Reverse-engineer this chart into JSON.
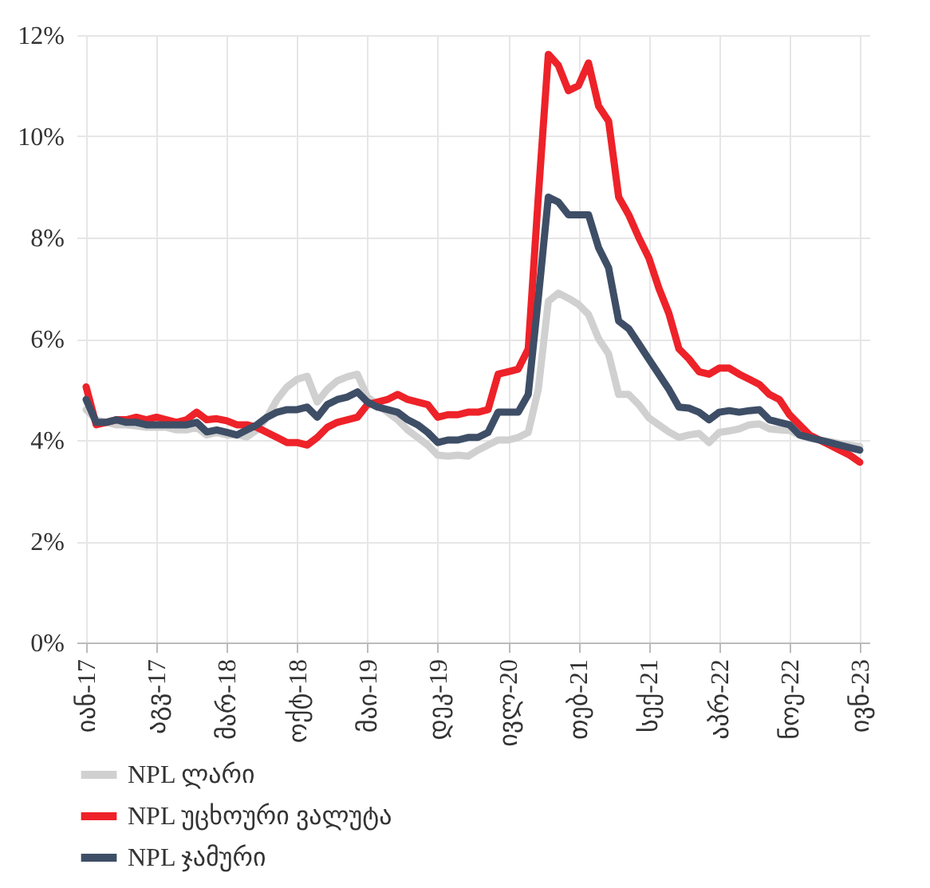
{
  "chart_data": {
    "type": "line",
    "categories": [
      "იან-17",
      null,
      null,
      null,
      null,
      null,
      null,
      "აგვ-17",
      null,
      null,
      null,
      null,
      null,
      null,
      "მარ-18",
      null,
      null,
      null,
      null,
      null,
      null,
      "ოქტ-18",
      null,
      null,
      null,
      null,
      null,
      null,
      "მაი-19",
      null,
      null,
      null,
      null,
      null,
      null,
      "დეკ-19",
      null,
      null,
      null,
      null,
      null,
      null,
      "ივლ-20",
      null,
      null,
      null,
      null,
      null,
      null,
      "თებ-21",
      null,
      null,
      null,
      null,
      null,
      null,
      "სექ-21",
      null,
      null,
      null,
      null,
      null,
      null,
      "აპრ-22",
      null,
      null,
      null,
      null,
      null,
      null,
      "ნოე-22",
      null,
      null,
      null,
      null,
      null,
      null,
      "ივნ-23"
    ],
    "series": [
      {
        "name": "NPL ლარი",
        "color": "#d0d0d0",
        "values": [
          4.6,
          4.4,
          4.35,
          4.3,
          4.3,
          4.28,
          4.25,
          4.25,
          4.25,
          4.2,
          4.2,
          4.25,
          4.1,
          4.15,
          4.1,
          4.1,
          4.06,
          4.2,
          4.45,
          4.8,
          5.05,
          5.2,
          5.26,
          4.75,
          5.0,
          5.17,
          5.25,
          5.3,
          4.85,
          4.7,
          4.55,
          4.4,
          4.2,
          4.05,
          3.9,
          3.7,
          3.68,
          3.7,
          3.68,
          3.8,
          3.9,
          4.0,
          4.0,
          4.05,
          4.15,
          5.0,
          6.74,
          6.9,
          6.8,
          6.68,
          6.48,
          6.0,
          5.7,
          4.9,
          4.9,
          4.7,
          4.44,
          4.3,
          4.16,
          4.05,
          4.1,
          4.13,
          3.95,
          4.15,
          4.18,
          4.22,
          4.3,
          4.32,
          4.22,
          4.2,
          4.19,
          4.1,
          4.03,
          4.0,
          3.97,
          3.93,
          3.9,
          3.87
        ]
      },
      {
        "name": "NPL უცხოური ვალუტა",
        "color": "#ee2229",
        "values": [
          5.05,
          4.3,
          4.35,
          4.4,
          4.4,
          4.45,
          4.4,
          4.45,
          4.4,
          4.35,
          4.4,
          4.55,
          4.4,
          4.42,
          4.38,
          4.3,
          4.3,
          4.25,
          4.15,
          4.05,
          3.95,
          3.95,
          3.9,
          4.05,
          4.25,
          4.35,
          4.4,
          4.45,
          4.7,
          4.75,
          4.8,
          4.9,
          4.8,
          4.75,
          4.7,
          4.45,
          4.5,
          4.5,
          4.55,
          4.55,
          4.6,
          5.3,
          5.35,
          5.4,
          5.8,
          8.8,
          11.62,
          11.4,
          10.9,
          11.0,
          11.45,
          10.6,
          10.3,
          8.8,
          8.45,
          8.0,
          7.6,
          7.0,
          6.5,
          5.8,
          5.6,
          5.35,
          5.3,
          5.42,
          5.42,
          5.3,
          5.2,
          5.1,
          4.9,
          4.8,
          4.5,
          4.3,
          4.1,
          4.0,
          3.9,
          3.8,
          3.7,
          3.56
        ]
      },
      {
        "name": "NPL ჯამური",
        "color": "#3e4e66",
        "values": [
          4.8,
          4.35,
          4.35,
          4.4,
          4.35,
          4.35,
          4.3,
          4.3,
          4.3,
          4.3,
          4.3,
          4.35,
          4.16,
          4.2,
          4.15,
          4.1,
          4.2,
          4.3,
          4.45,
          4.55,
          4.6,
          4.6,
          4.65,
          4.45,
          4.7,
          4.8,
          4.85,
          4.95,
          4.75,
          4.65,
          4.6,
          4.55,
          4.4,
          4.3,
          4.15,
          3.95,
          4.0,
          4.0,
          4.05,
          4.05,
          4.15,
          4.55,
          4.55,
          4.55,
          4.9,
          6.8,
          8.8,
          8.7,
          8.45,
          8.45,
          8.45,
          7.8,
          7.4,
          6.35,
          6.2,
          5.9,
          5.6,
          5.3,
          5.0,
          4.65,
          4.63,
          4.55,
          4.4,
          4.55,
          4.58,
          4.55,
          4.58,
          4.6,
          4.4,
          4.35,
          4.3,
          4.1,
          4.05,
          4.0,
          3.95,
          3.9,
          3.85,
          3.8
        ]
      }
    ],
    "ylim": [
      0,
      12
    ],
    "yticks": [
      {
        "value": 0,
        "label": "0%"
      },
      {
        "value": 2,
        "label": "2%"
      },
      {
        "value": 4,
        "label": "4%"
      },
      {
        "value": 6,
        "label": "6%"
      },
      {
        "value": 8,
        "label": "8%"
      },
      {
        "value": 10,
        "label": "10%"
      },
      {
        "value": 12,
        "label": "12%"
      }
    ],
    "grid": true,
    "legend": "bottom",
    "marker": "none",
    "line_style": "solid"
  }
}
